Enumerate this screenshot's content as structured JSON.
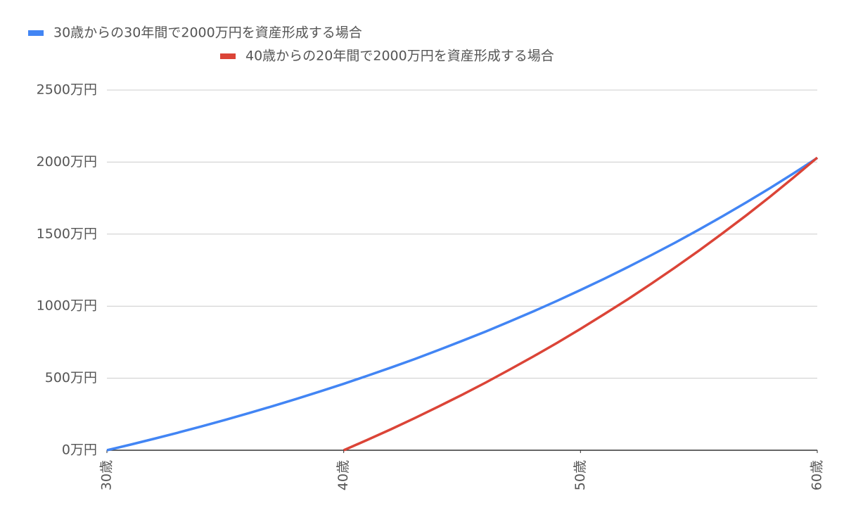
{
  "chart_data": {
    "type": "line",
    "x": [
      30,
      31,
      32,
      33,
      34,
      35,
      36,
      37,
      38,
      39,
      40,
      41,
      42,
      43,
      44,
      45,
      46,
      47,
      48,
      49,
      50,
      51,
      52,
      53,
      54,
      55,
      56,
      57,
      58,
      59,
      60
    ],
    "series": [
      {
        "name": "30歳からの30年間で2000万円を資産形成する場合",
        "color": "#4285f4",
        "values": [
          0,
          39,
          80,
          122,
          166,
          211,
          258,
          306,
          356,
          408,
          461,
          517,
          574,
          633,
          695,
          759,
          824,
          893,
          963,
          1036,
          1112,
          1190,
          1271,
          1355,
          1441,
          1531,
          1624,
          1720,
          1819,
          1922,
          2029
        ]
      },
      {
        "name": "40歳からの20年間で2000万円を資産形成する場合",
        "color": "#db4437",
        "values": [
          null,
          null,
          null,
          null,
          null,
          null,
          null,
          null,
          null,
          null,
          0,
          72,
          146,
          223,
          303,
          385,
          470,
          559,
          650,
          744,
          842,
          944,
          1048,
          1157,
          1269,
          1385,
          1506,
          1630,
          1759,
          1893,
          2031
        ]
      }
    ],
    "xlim": [
      30,
      60
    ],
    "xticks": [
      {
        "value": 30,
        "label": "30歳"
      },
      {
        "value": 40,
        "label": "40歳"
      },
      {
        "value": 50,
        "label": "50歳"
      },
      {
        "value": 60,
        "label": "60歳"
      }
    ],
    "ylim": [
      0,
      2500
    ],
    "yticks": [
      {
        "value": 0,
        "label": "0万円"
      },
      {
        "value": 500,
        "label": "500万円"
      },
      {
        "value": 1000,
        "label": "1000万円"
      },
      {
        "value": 1500,
        "label": "1500万円"
      },
      {
        "value": 2000,
        "label": "2000万円"
      },
      {
        "value": 2500,
        "label": "2500万円"
      }
    ],
    "grid": true,
    "legend": "top"
  }
}
